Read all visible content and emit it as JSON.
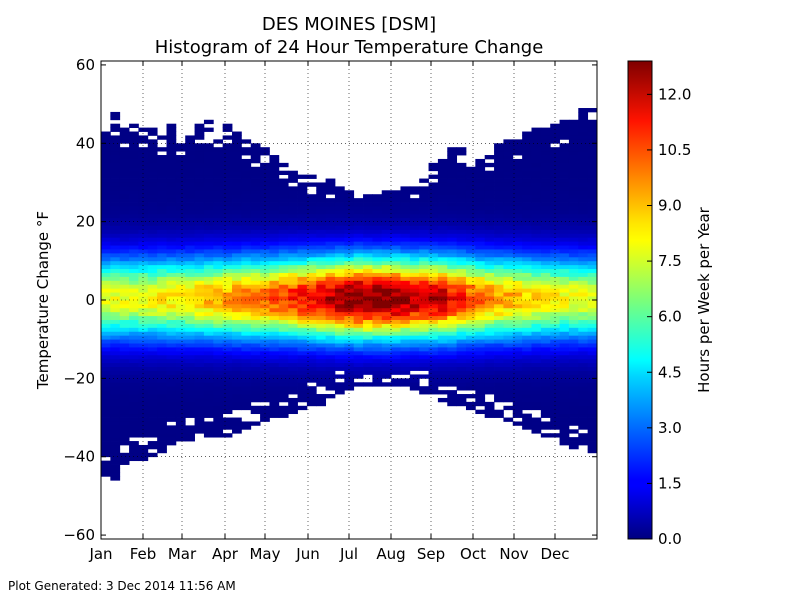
{
  "chart_data": {
    "type": "heatmap",
    "title": "DES MOINES [DSM]",
    "subtitle": "Histogram of 24 Hour Temperature Change",
    "ylabel": "Temperature Change °F",
    "ylim": [
      -61,
      61
    ],
    "y_ticks": [
      "60",
      "40",
      "20",
      "0",
      "−20",
      "−40",
      "−60"
    ],
    "x_ticks": [
      "Jan",
      "Feb",
      "Mar",
      "Apr",
      "May",
      "Jun",
      "Jul",
      "Aug",
      "Sep",
      "Oct",
      "Nov",
      "Dec"
    ],
    "x_unit": "week of year",
    "weeks": 53,
    "grid": true,
    "colormap": "jet",
    "colorbar": {
      "label": "Hours per Week per Year",
      "min": 0.0,
      "max": 12.9,
      "ticks": [
        "0.0",
        "1.5",
        "3.0",
        "4.5",
        "6.0",
        "7.5",
        "9.0",
        "10.5",
        "12.0"
      ]
    },
    "weekly_range_upper_f": [
      45,
      47,
      43,
      44,
      43,
      44,
      42,
      44,
      39,
      42,
      44,
      45,
      40,
      45,
      42,
      41,
      39,
      38,
      36,
      35,
      33,
      32,
      31,
      30,
      30,
      28,
      27,
      26,
      26,
      26,
      27,
      27,
      28,
      29,
      30,
      34,
      36,
      38,
      38,
      36,
      35,
      38,
      40,
      40,
      41,
      42,
      43,
      44,
      44,
      45,
      46,
      48,
      48
    ],
    "weekly_range_lower_f": [
      -45,
      -46,
      -42,
      -41,
      -41,
      -40,
      -39,
      -37,
      -36,
      -36,
      -35,
      -35,
      -35,
      -35,
      -34,
      -33,
      -32,
      -31,
      -30,
      -30,
      -29,
      -28,
      -27,
      -27,
      -26,
      -24,
      -23,
      -22,
      -22,
      -22,
      -22,
      -22,
      -22,
      -23,
      -24,
      -25,
      -26,
      -27,
      -28,
      -28,
      -29,
      -30,
      -30,
      -31,
      -32,
      -33,
      -34,
      -35,
      -36,
      -37,
      -38,
      -38,
      -39
    ],
    "weekly_peak_hours_per_week": [
      7.6,
      7.5,
      7.5,
      7.6,
      7.7,
      7.8,
      7.9,
      8.0,
      8.1,
      8.3,
      8.5,
      8.7,
      8.9,
      9.0,
      9.2,
      9.4,
      9.6,
      9.8,
      10.0,
      10.3,
      10.6,
      10.9,
      11.2,
      11.5,
      11.9,
      12.3,
      12.6,
      12.9,
      12.8,
      12.7,
      12.8,
      12.6,
      12.3,
      12.0,
      12.3,
      11.9,
      11.6,
      11.0,
      10.5,
      10.0,
      9.6,
      9.2,
      9.0,
      8.8,
      8.6,
      8.4,
      8.2,
      8.0,
      7.8,
      7.7,
      7.6,
      7.6,
      7.5
    ]
  },
  "footer": {
    "generated": "Plot Generated: 3 Dec 2014 11:56 AM"
  }
}
